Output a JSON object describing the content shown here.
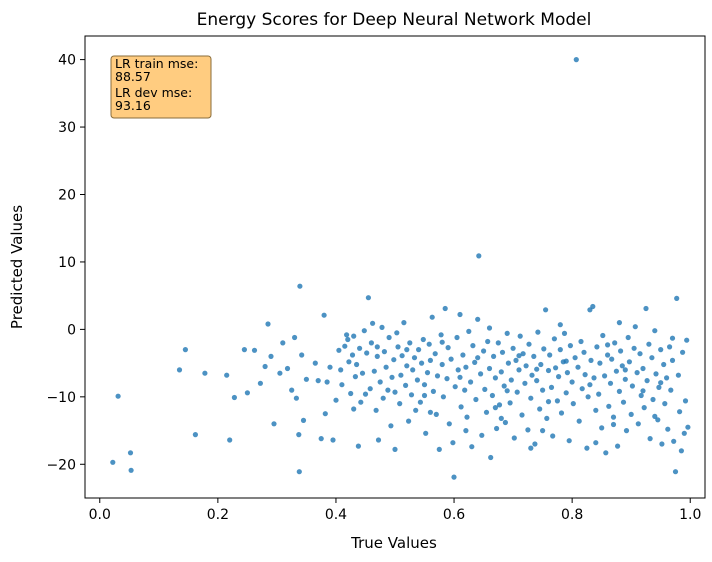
{
  "chart_data": {
    "type": "scatter",
    "title": "Energy Scores for Deep Neural Network Model",
    "xlabel": "True Values",
    "ylabel": "Predicted Values",
    "xlim": [
      -0.025,
      1.025
    ],
    "ylim": [
      -25,
      43.5
    ],
    "xticks": [
      0.0,
      0.2,
      0.4,
      0.6,
      0.8,
      1.0
    ],
    "xtick_labels": [
      "0.0",
      "0.2",
      "0.4",
      "0.6",
      "0.8",
      "1.0"
    ],
    "yticks": [
      -20,
      -10,
      0,
      10,
      20,
      30,
      40
    ],
    "ytick_labels": [
      "−20",
      "−10",
      "0",
      "10",
      "20",
      "30",
      "40"
    ],
    "grid": false,
    "marker_color": "#1f77b4",
    "annotation": {
      "lines": [
        "LR train mse:",
        "88.57",
        "LR dev mse:",
        "93.16"
      ],
      "background": "#ffcc80",
      "border": "#8a6d3b"
    },
    "points": [
      [
        0.022,
        -19.7
      ],
      [
        0.031,
        -9.9
      ],
      [
        0.052,
        -18.3
      ],
      [
        0.053,
        -20.9
      ],
      [
        0.135,
        -6.0
      ],
      [
        0.145,
        -3.0
      ],
      [
        0.162,
        -15.6
      ],
      [
        0.178,
        -6.5
      ],
      [
        0.215,
        -6.8
      ],
      [
        0.22,
        -16.4
      ],
      [
        0.228,
        -10.1
      ],
      [
        0.245,
        -3.0
      ],
      [
        0.25,
        -9.4
      ],
      [
        0.262,
        -3.1
      ],
      [
        0.272,
        -8.0
      ],
      [
        0.28,
        -5.5
      ],
      [
        0.285,
        0.8
      ],
      [
        0.29,
        -4.0
      ],
      [
        0.295,
        -14.0
      ],
      [
        0.305,
        -6.5
      ],
      [
        0.31,
        -2.0
      ],
      [
        0.318,
        -5.8
      ],
      [
        0.325,
        -9.0
      ],
      [
        0.33,
        -1.2
      ],
      [
        0.333,
        -10.2
      ],
      [
        0.337,
        -15.6
      ],
      [
        0.338,
        -21.1
      ],
      [
        0.339,
        6.4
      ],
      [
        0.342,
        -3.8
      ],
      [
        0.345,
        -13.5
      ],
      [
        0.35,
        -7.4
      ],
      [
        0.365,
        -5.0
      ],
      [
        0.37,
        -7.6
      ],
      [
        0.375,
        -16.2
      ],
      [
        0.38,
        2.1
      ],
      [
        0.382,
        -12.5
      ],
      [
        0.385,
        -7.8
      ],
      [
        0.39,
        -5.6
      ],
      [
        0.395,
        -16.4
      ],
      [
        0.4,
        -10.5
      ],
      [
        0.405,
        -3.1
      ],
      [
        0.408,
        -6.0
      ],
      [
        0.41,
        -8.2
      ],
      [
        0.415,
        -2.5
      ],
      [
        0.418,
        -0.8
      ],
      [
        0.42,
        -1.5
      ],
      [
        0.422,
        -4.8
      ],
      [
        0.425,
        -9.5
      ],
      [
        0.428,
        -3.8
      ],
      [
        0.43,
        -1.0
      ],
      [
        0.433,
        -7.0
      ],
      [
        0.435,
        -5.2
      ],
      [
        0.438,
        -17.3
      ],
      [
        0.44,
        -2.8
      ],
      [
        0.442,
        -10.8
      ],
      [
        0.445,
        -6.5
      ],
      [
        0.448,
        -0.2
      ],
      [
        0.452,
        -3.5
      ],
      [
        0.455,
        4.7
      ],
      [
        0.458,
        -8.8
      ],
      [
        0.46,
        -2.0
      ],
      [
        0.462,
        0.9
      ],
      [
        0.465,
        -6.2
      ],
      [
        0.468,
        -12.0
      ],
      [
        0.47,
        -4.0
      ],
      [
        0.472,
        -16.4
      ],
      [
        0.475,
        -7.8
      ],
      [
        0.478,
        0.3
      ],
      [
        0.48,
        -10.2
      ],
      [
        0.482,
        -3.3
      ],
      [
        0.485,
        -5.6
      ],
      [
        0.488,
        -9.0
      ],
      [
        0.49,
        -1.2
      ],
      [
        0.493,
        -14.3
      ],
      [
        0.495,
        -7.1
      ],
      [
        0.498,
        -4.5
      ],
      [
        0.5,
        -17.8
      ],
      [
        0.503,
        -0.5
      ],
      [
        0.505,
        -2.6
      ],
      [
        0.508,
        -11.0
      ],
      [
        0.51,
        -6.8
      ],
      [
        0.512,
        -3.9
      ],
      [
        0.515,
        1.0
      ],
      [
        0.518,
        -8.3
      ],
      [
        0.52,
        -5.4
      ],
      [
        0.523,
        -13.6
      ],
      [
        0.525,
        -2.0
      ],
      [
        0.528,
        -9.7
      ],
      [
        0.53,
        -6.0
      ],
      [
        0.533,
        -4.2
      ],
      [
        0.535,
        -12.0
      ],
      [
        0.538,
        -7.5
      ],
      [
        0.54,
        -3.0
      ],
      [
        0.543,
        -10.8
      ],
      [
        0.545,
        -5.0
      ],
      [
        0.548,
        -1.5
      ],
      [
        0.55,
        -8.2
      ],
      [
        0.552,
        -15.4
      ],
      [
        0.555,
        -6.4
      ],
      [
        0.558,
        -2.2
      ],
      [
        0.56,
        -4.6
      ],
      [
        0.563,
        1.8
      ],
      [
        0.565,
        -9.2
      ],
      [
        0.568,
        -3.6
      ],
      [
        0.57,
        -12.6
      ],
      [
        0.572,
        -6.9
      ],
      [
        0.575,
        -17.8
      ],
      [
        0.578,
        -0.8
      ],
      [
        0.58,
        -5.2
      ],
      [
        0.582,
        -10.0
      ],
      [
        0.585,
        3.1
      ],
      [
        0.588,
        -7.3
      ],
      [
        0.59,
        -2.7
      ],
      [
        0.592,
        -14.0
      ],
      [
        0.595,
        -4.4
      ],
      [
        0.598,
        -16.8
      ],
      [
        0.6,
        -21.9
      ],
      [
        0.602,
        -8.5
      ],
      [
        0.605,
        -1.2
      ],
      [
        0.607,
        -6.0
      ],
      [
        0.61,
        2.2
      ],
      [
        0.612,
        -11.5
      ],
      [
        0.615,
        -3.8
      ],
      [
        0.618,
        -9.0
      ],
      [
        0.62,
        -5.6
      ],
      [
        0.622,
        -13.0
      ],
      [
        0.625,
        -0.3
      ],
      [
        0.628,
        -7.8
      ],
      [
        0.63,
        -17.4
      ],
      [
        0.632,
        -2.4
      ],
      [
        0.635,
        -4.9
      ],
      [
        0.637,
        -10.4
      ],
      [
        0.64,
        1.5
      ],
      [
        0.642,
        10.9
      ],
      [
        0.645,
        -6.6
      ],
      [
        0.647,
        -15.7
      ],
      [
        0.65,
        -3.2
      ],
      [
        0.652,
        -8.9
      ],
      [
        0.655,
        -12.3
      ],
      [
        0.657,
        -1.8
      ],
      [
        0.66,
        -5.8
      ],
      [
        0.662,
        -19.0
      ],
      [
        0.665,
        -9.8
      ],
      [
        0.667,
        -4.0
      ],
      [
        0.67,
        -7.2
      ],
      [
        0.672,
        -14.7
      ],
      [
        0.675,
        -2.0
      ],
      [
        0.677,
        -11.2
      ],
      [
        0.68,
        -6.3
      ],
      [
        0.682,
        -3.4
      ],
      [
        0.685,
        -8.4
      ],
      [
        0.687,
        -13.8
      ],
      [
        0.69,
        -0.6
      ],
      [
        0.692,
        -5.0
      ],
      [
        0.695,
        -10.9
      ],
      [
        0.697,
        -7.5
      ],
      [
        0.7,
        -2.8
      ],
      [
        0.702,
        -16.1
      ],
      [
        0.705,
        -4.6
      ],
      [
        0.707,
        -9.3
      ],
      [
        0.71,
        -6.0
      ],
      [
        0.712,
        -1.0
      ],
      [
        0.715,
        -12.7
      ],
      [
        0.717,
        -3.6
      ],
      [
        0.72,
        -8.0
      ],
      [
        0.722,
        -5.4
      ],
      [
        0.725,
        -14.9
      ],
      [
        0.727,
        -2.2
      ],
      [
        0.73,
        -10.2
      ],
      [
        0.732,
        -6.8
      ],
      [
        0.735,
        -4.0
      ],
      [
        0.737,
        -17.0
      ],
      [
        0.74,
        -7.6
      ],
      [
        0.742,
        -0.4
      ],
      [
        0.745,
        -11.8
      ],
      [
        0.747,
        -5.2
      ],
      [
        0.75,
        -9.0
      ],
      [
        0.752,
        -2.9
      ],
      [
        0.755,
        2.9
      ],
      [
        0.757,
        -13.2
      ],
      [
        0.76,
        -6.1
      ],
      [
        0.762,
        -3.8
      ],
      [
        0.765,
        -8.6
      ],
      [
        0.767,
        -15.8
      ],
      [
        0.77,
        -1.4
      ],
      [
        0.772,
        -5.7
      ],
      [
        0.775,
        -10.6
      ],
      [
        0.777,
        -7.0
      ],
      [
        0.78,
        -3.0
      ],
      [
        0.782,
        -12.4
      ],
      [
        0.785,
        -4.8
      ],
      [
        0.787,
        -0.6
      ],
      [
        0.79,
        -9.4
      ],
      [
        0.792,
        -6.4
      ],
      [
        0.795,
        -16.5
      ],
      [
        0.797,
        -2.4
      ],
      [
        0.8,
        -7.8
      ],
      [
        0.802,
        -11.0
      ],
      [
        0.805,
        -4.2
      ],
      [
        0.807,
        40.0
      ],
      [
        0.81,
        -5.6
      ],
      [
        0.812,
        -13.6
      ],
      [
        0.815,
        -1.8
      ],
      [
        0.817,
        -8.8
      ],
      [
        0.82,
        -3.4
      ],
      [
        0.822,
        -6.7
      ],
      [
        0.825,
        -17.6
      ],
      [
        0.827,
        -10.0
      ],
      [
        0.83,
        2.9
      ],
      [
        0.832,
        -4.6
      ],
      [
        0.835,
        3.4
      ],
      [
        0.837,
        -7.2
      ],
      [
        0.84,
        -12.0
      ],
      [
        0.842,
        -2.6
      ],
      [
        0.845,
        -9.6
      ],
      [
        0.847,
        -5.0
      ],
      [
        0.85,
        -14.6
      ],
      [
        0.852,
        -0.9
      ],
      [
        0.855,
        -6.9
      ],
      [
        0.857,
        -18.3
      ],
      [
        0.86,
        -3.8
      ],
      [
        0.862,
        -11.4
      ],
      [
        0.865,
        -8.0
      ],
      [
        0.867,
        -4.4
      ],
      [
        0.87,
        -13.0
      ],
      [
        0.872,
        -2.0
      ],
      [
        0.875,
        -6.2
      ],
      [
        0.877,
        -17.3
      ],
      [
        0.88,
        -9.2
      ],
      [
        0.882,
        -3.2
      ],
      [
        0.885,
        -5.4
      ],
      [
        0.887,
        -10.8
      ],
      [
        0.89,
        -7.4
      ],
      [
        0.892,
        -15.0
      ],
      [
        0.895,
        -1.2
      ],
      [
        0.897,
        -4.8
      ],
      [
        0.9,
        -12.6
      ],
      [
        0.902,
        -8.4
      ],
      [
        0.905,
        -2.8
      ],
      [
        0.907,
        0.4
      ],
      [
        0.91,
        -6.4
      ],
      [
        0.912,
        -14.0
      ],
      [
        0.915,
        -3.6
      ],
      [
        0.917,
        -9.8
      ],
      [
        0.92,
        -5.8
      ],
      [
        0.922,
        -11.6
      ],
      [
        0.925,
        3.1
      ],
      [
        0.927,
        -7.6
      ],
      [
        0.93,
        -2.2
      ],
      [
        0.932,
        -16.2
      ],
      [
        0.935,
        -4.2
      ],
      [
        0.937,
        -10.4
      ],
      [
        0.94,
        -0.2
      ],
      [
        0.942,
        -6.6
      ],
      [
        0.945,
        -13.4
      ],
      [
        0.947,
        -8.6
      ],
      [
        0.95,
        -3.0
      ],
      [
        0.952,
        -17.0
      ],
      [
        0.955,
        -5.2
      ],
      [
        0.957,
        -11.0
      ],
      [
        0.96,
        -7.2
      ],
      [
        0.962,
        -14.8
      ],
      [
        0.965,
        -2.6
      ],
      [
        0.967,
        -9.0
      ],
      [
        0.97,
        -4.6
      ],
      [
        0.972,
        -16.6
      ],
      [
        0.975,
        -21.1
      ],
      [
        0.977,
        4.6
      ],
      [
        0.98,
        -6.8
      ],
      [
        0.982,
        -12.2
      ],
      [
        0.985,
        -18.0
      ],
      [
        0.987,
        -3.4
      ],
      [
        0.99,
        -15.4
      ],
      [
        0.992,
        -10.6
      ],
      [
        0.994,
        -1.6
      ],
      [
        0.996,
        -14.5
      ],
      [
        0.45,
        -9.6
      ],
      [
        0.47,
        -2.6
      ],
      [
        0.52,
        -3.0
      ],
      [
        0.55,
        -9.8
      ],
      [
        0.58,
        -1.9
      ],
      [
        0.61,
        -7.1
      ],
      [
        0.64,
        -4.2
      ],
      [
        0.67,
        -11.6
      ],
      [
        0.69,
        -9.1
      ],
      [
        0.71,
        -3.9
      ],
      [
        0.74,
        -5.9
      ],
      [
        0.76,
        -10.7
      ],
      [
        0.79,
        -4.7
      ],
      [
        0.83,
        -8.2
      ],
      [
        0.86,
        -2.3
      ],
      [
        0.89,
        -6.0
      ],
      [
        0.92,
        -9.1
      ],
      [
        0.95,
        -7.9
      ],
      [
        0.97,
        -1.3
      ],
      [
        0.62,
        -15.0
      ],
      [
        0.73,
        -17.6
      ],
      [
        0.84,
        -16.8
      ],
      [
        0.66,
        0.2
      ],
      [
        0.78,
        0.7
      ],
      [
        0.88,
        1.0
      ],
      [
        0.56,
        -12.3
      ],
      [
        0.5,
        -9.3
      ],
      [
        0.43,
        -11.8
      ],
      [
        0.75,
        -15.0
      ],
      [
        0.68,
        -13.2
      ],
      [
        0.87,
        -14.1
      ],
      [
        0.94,
        -12.9
      ]
    ]
  }
}
